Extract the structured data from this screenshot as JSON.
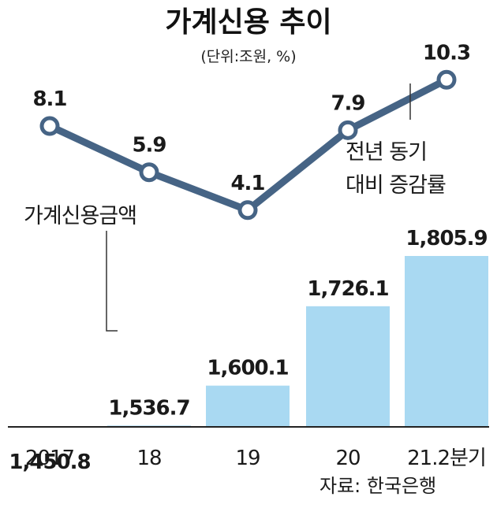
{
  "chart_data": {
    "type": "bar+line",
    "title": "가계신용 추이",
    "unit": "(단위:조원, %)",
    "categories": [
      "2017",
      "18",
      "19",
      "20",
      "21.2분기"
    ],
    "series": [
      {
        "name": "가계신용금액",
        "type": "bar",
        "values": [
          1450.8,
          1536.7,
          1600.1,
          1726.1,
          1805.9
        ],
        "labels": [
          "1,450.8",
          "1,536.7",
          "1,600.1",
          "1,726.1",
          "1,805.9"
        ]
      },
      {
        "name": "전년 동기 대비 증감률",
        "type": "line",
        "values": [
          8.1,
          5.9,
          4.1,
          7.9,
          10.3
        ],
        "labels": [
          "8.1",
          "5.9",
          "4.1",
          "7.9",
          "10.3"
        ]
      }
    ],
    "line_legend": [
      "전년 동기",
      "대비 증감률"
    ],
    "source": "자료: 한국은행",
    "colors": {
      "bar": "#a9d9f2",
      "line": "#466485",
      "marker_fill": "#ffffff",
      "text": "#1a1a1a",
      "axis": "#222222"
    }
  }
}
